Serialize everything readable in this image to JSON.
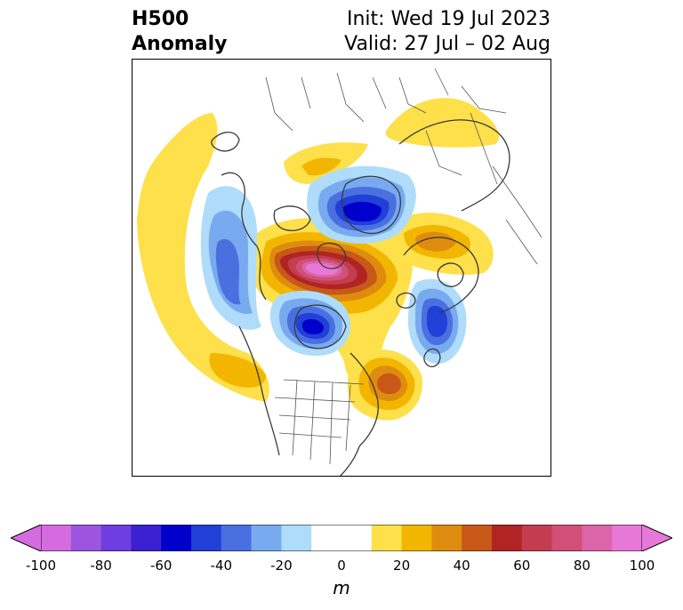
{
  "header": {
    "title_line1": "H500",
    "title_line2": "Anomaly",
    "init_label": "Init: Wed 19 Jul 2023",
    "valid_label": "Valid: 27 Jul – 02 Aug"
  },
  "colorbar": {
    "unit": "m",
    "min": -100,
    "max": 100,
    "extend": "both",
    "ticks": [
      "-100",
      "-80",
      "-60",
      "-40",
      "-20",
      "0",
      "20",
      "40",
      "60",
      "80",
      "100"
    ],
    "levels": [
      -100,
      -90,
      -80,
      -70,
      -60,
      -50,
      -40,
      -30,
      -20,
      -10,
      10,
      20,
      30,
      40,
      50,
      60,
      70,
      80,
      90,
      100
    ],
    "colors": [
      "#d66be0",
      "#9d55e0",
      "#6f3ee0",
      "#3a20d0",
      "#0000cc",
      "#2040d8",
      "#4a70e0",
      "#78aaf0",
      "#aedcfa",
      "#ffffff",
      "#fde04a",
      "#f2b600",
      "#de8c10",
      "#c85818",
      "#b02424",
      "#c43c50",
      "#d05078",
      "#dc64a8",
      "#e878d8"
    ]
  },
  "map": {
    "region": "North America / Arctic",
    "features": [
      "anomaly-contours",
      "coastlines",
      "country-borders",
      "us-state-borders"
    ]
  }
}
